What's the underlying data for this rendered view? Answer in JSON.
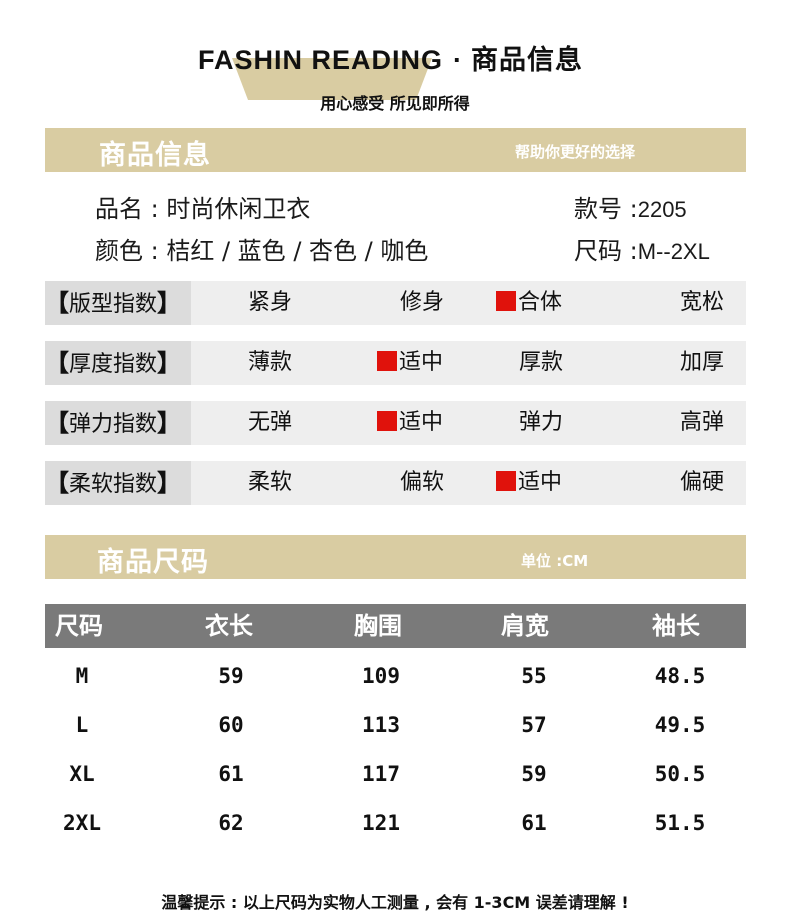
{
  "header": {
    "brand": "FASHIN READING",
    "dot": "·",
    "title": "商品信息",
    "subtitle": "用心感受  所见即所得"
  },
  "info_band": {
    "title": "商品信息",
    "note": "帮助你更好的选择"
  },
  "product": {
    "name_label": "品名 : ",
    "name_value": "时尚休闲卫衣",
    "style_label": "款号 :",
    "style_value": "2205",
    "color_label": "颜色 : ",
    "color_value": "桔红 / 蓝色 / 杏色 / 咖色",
    "size_label": "尺码 :",
    "size_value": "M--2XL"
  },
  "indices": [
    {
      "label": "版型指数",
      "options": [
        "紧身",
        "修身",
        "合体",
        "宽松"
      ],
      "selected": 2
    },
    {
      "label": "厚度指数",
      "options": [
        "薄款",
        "适中",
        "厚款",
        "加厚"
      ],
      "selected": 1
    },
    {
      "label": "弹力指数",
      "options": [
        "无弹",
        "适中",
        "弹力",
        "高弹"
      ],
      "selected": 1
    },
    {
      "label": "柔软指数",
      "options": [
        "柔软",
        "偏软",
        "适中",
        "偏硬"
      ],
      "selected": 2
    }
  ],
  "bracket_left": "【",
  "bracket_right": "】",
  "size_band": {
    "title": "商品尺码",
    "unit": "单位 :CM"
  },
  "size_table": {
    "headers": [
      "尺码",
      "衣长",
      "胸围",
      "肩宽",
      "袖长"
    ],
    "rows": [
      [
        "M",
        "59",
        "109",
        "55",
        "48.5"
      ],
      [
        "L",
        "60",
        "113",
        "57",
        "49.5"
      ],
      [
        "XL",
        "61",
        "117",
        "59",
        "50.5"
      ],
      [
        "2XL",
        "62",
        "121",
        "61",
        "51.5"
      ]
    ]
  },
  "footer": "温馨提示 : 以上尺码为实物人工测量 , 会有 1-3CM 误差请理解 !",
  "colors": {
    "band": "#d9cca2",
    "table_header": "#7a7a7a",
    "index_row": "#eeeeee",
    "index_label": "#dcdcdc",
    "mark": "#e0120c"
  }
}
